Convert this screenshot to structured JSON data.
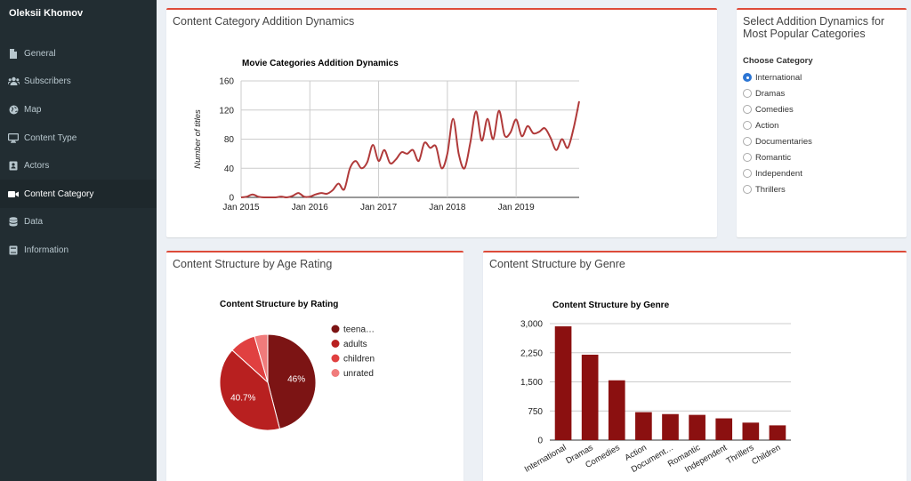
{
  "sidebar": {
    "user_name": "Oleksii Khomov",
    "items": [
      {
        "label": "General",
        "icon": "file-icon"
      },
      {
        "label": "Subscribers",
        "icon": "users-icon"
      },
      {
        "label": "Map",
        "icon": "globe-icon"
      },
      {
        "label": "Content Type",
        "icon": "desktop-icon"
      },
      {
        "label": "Actors",
        "icon": "id-card-icon"
      },
      {
        "label": "Content Category",
        "icon": "video-icon",
        "active": true
      },
      {
        "label": "Data",
        "icon": "database-icon"
      },
      {
        "label": "Information",
        "icon": "book-icon"
      }
    ]
  },
  "colors": {
    "accent": "#dd4b39",
    "sidebar_bg": "#222d32",
    "line": "#b03a3a",
    "bar": "#8b1010",
    "pie": [
      "#7c1414",
      "#b82020",
      "#e04040",
      "#f07b7b"
    ]
  },
  "boxes": {
    "dynamics_title": "Content Category Addition Dynamics",
    "select_title": "Select Addition Dynamics for Most Popular Categories",
    "age_title": "Content Structure by Age Rating",
    "genre_title": "Content Structure by Genre"
  },
  "category_select": {
    "label": "Choose Category",
    "options": [
      "International",
      "Dramas",
      "Comedies",
      "Action",
      "Documentaries",
      "Romantic",
      "Independent",
      "Thrillers"
    ],
    "selected": "International"
  },
  "chart_data": [
    {
      "type": "line",
      "title": "Movie Categories Addition Dynamics",
      "xlabel": "",
      "ylabel": "Number of titles",
      "ylim": [
        0,
        160
      ],
      "yticks": [
        0,
        40,
        80,
        120,
        160
      ],
      "xticks": [
        "Jan 2015",
        "Jan 2016",
        "Jan 2017",
        "Jan 2018",
        "Jan 2019"
      ],
      "x": [
        "2015-01",
        "2015-02",
        "2015-03",
        "2015-04",
        "2015-05",
        "2015-06",
        "2015-07",
        "2015-08",
        "2015-09",
        "2015-10",
        "2015-11",
        "2015-12",
        "2016-01",
        "2016-02",
        "2016-03",
        "2016-04",
        "2016-05",
        "2016-06",
        "2016-07",
        "2016-08",
        "2016-09",
        "2016-10",
        "2016-11",
        "2016-12",
        "2017-01",
        "2017-02",
        "2017-03",
        "2017-04",
        "2017-05",
        "2017-06",
        "2017-07",
        "2017-08",
        "2017-09",
        "2017-10",
        "2017-11",
        "2017-12",
        "2018-01",
        "2018-02",
        "2018-03",
        "2018-04",
        "2018-05",
        "2018-06",
        "2018-07",
        "2018-08",
        "2018-09",
        "2018-10",
        "2018-11",
        "2018-12",
        "2019-01",
        "2019-02",
        "2019-03",
        "2019-04",
        "2019-05",
        "2019-06",
        "2019-07",
        "2019-08",
        "2019-09",
        "2019-10",
        "2019-11",
        "2019-12"
      ],
      "values": [
        0,
        1,
        4,
        1,
        0,
        0,
        0,
        1,
        0,
        2,
        6,
        1,
        1,
        4,
        6,
        5,
        10,
        19,
        11,
        40,
        50,
        40,
        48,
        72,
        50,
        65,
        47,
        52,
        62,
        60,
        65,
        50,
        75,
        68,
        70,
        40,
        60,
        108,
        59,
        40,
        75,
        118,
        78,
        108,
        80,
        119,
        85,
        89,
        107,
        84,
        98,
        88,
        90,
        95,
        82,
        65,
        80,
        68,
        94,
        132
      ],
      "series_color": "#b03a3a"
    },
    {
      "type": "pie",
      "title": "Content Structure by Rating",
      "legend": [
        "teena…",
        "adults",
        "children",
        "unrated"
      ],
      "values": [
        46,
        40.7,
        8.8,
        4.5
      ],
      "slice_labels": [
        "46%",
        "40.7%",
        "",
        ""
      ],
      "colors": [
        "#7c1414",
        "#b82020",
        "#e04040",
        "#f07b7b"
      ],
      "legend_position": "right"
    },
    {
      "type": "bar",
      "title": "Content Structure by Genre",
      "categories": [
        "International",
        "Dramas",
        "Comedies",
        "Action",
        "Document…",
        "Romantic",
        "Independent",
        "Thrillers",
        "Children"
      ],
      "values": [
        2930,
        2200,
        1540,
        720,
        670,
        650,
        560,
        450,
        380
      ],
      "ylim": [
        0,
        3000
      ],
      "yticks": [
        "0",
        "750",
        "1,500",
        "2,250",
        "3,000"
      ],
      "ytick_values": [
        0,
        750,
        1500,
        2250,
        3000
      ],
      "xlabel": "",
      "ylabel": "",
      "series_color": "#8b1010"
    }
  ]
}
